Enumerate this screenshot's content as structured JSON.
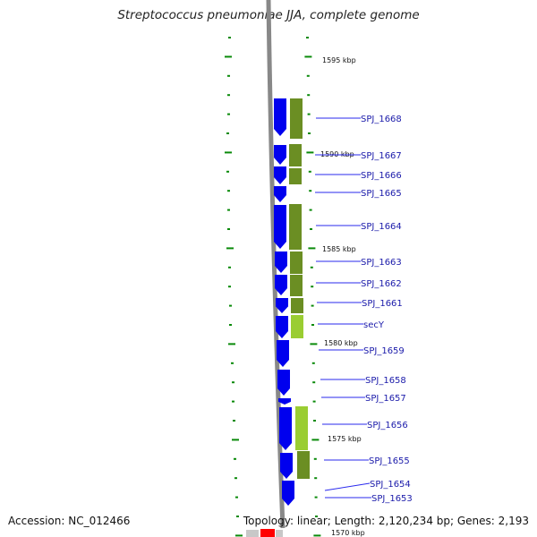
{
  "title": "Streptococcus pneumoniae JJA, complete genome",
  "accession_label": "Accession: NC_012466",
  "topology_label": "Topology: linear; Length: 2,120,234 bp; Genes: 2,193",
  "colors": {
    "forward_gene": "#0000ee",
    "feature_dark": "#6b8e23",
    "feature_light": "#9acd32",
    "tick": "#0a8a0a",
    "label": "#1a1aaa",
    "leader": "#2a2aee",
    "backbone": "#888888",
    "highlight": "#ff0000"
  },
  "ruler": {
    "unit": "kbp",
    "labels": [
      "1595 kbp",
      "1590 kbp",
      "1585 kbp",
      "1580 kbp",
      "1575 kbp",
      "1570 kbp"
    ]
  },
  "genes": [
    {
      "name": "SPJ_1668",
      "shade": "dark"
    },
    {
      "name": "SPJ_1667",
      "shade": "dark"
    },
    {
      "name": "SPJ_1666",
      "shade": "dark"
    },
    {
      "name": "SPJ_1665",
      "shade": "dark"
    },
    {
      "name": "SPJ_1664",
      "shade": "dark"
    },
    {
      "name": "SPJ_1663",
      "shade": "dark"
    },
    {
      "name": "SPJ_1662",
      "shade": "dark"
    },
    {
      "name": "SPJ_1661",
      "shade": "dark"
    },
    {
      "name": "secY",
      "shade": "light"
    },
    {
      "name": "SPJ_1659",
      "shade": "none"
    },
    {
      "name": "SPJ_1658",
      "shade": "none"
    },
    {
      "name": "SPJ_1657",
      "shade": "none"
    },
    {
      "name": "SPJ_1656",
      "shade": "light"
    },
    {
      "name": "SPJ_1655",
      "shade": "dark"
    },
    {
      "name": "SPJ_1654",
      "shade": "none"
    },
    {
      "name": "SPJ_1653",
      "shade": "none"
    }
  ]
}
